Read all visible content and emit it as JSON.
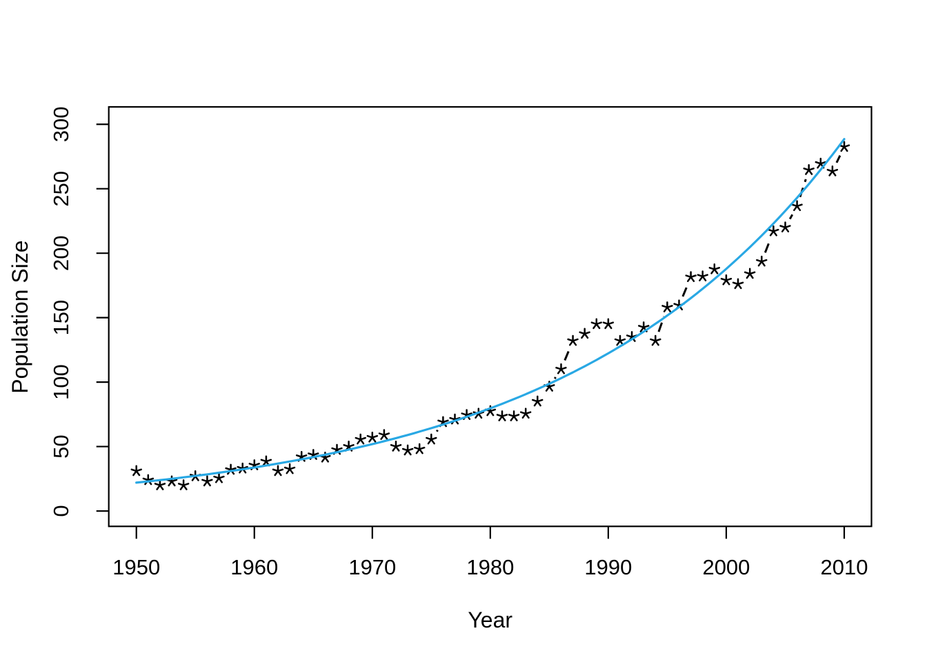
{
  "chart_data": {
    "type": "scatter",
    "title": "",
    "xlabel": "Year",
    "ylabel": "Population Size",
    "x_ticks": [
      1950,
      1960,
      1970,
      1980,
      1990,
      2000,
      2010
    ],
    "y_ticks": [
      0,
      50,
      100,
      150,
      200,
      250,
      300
    ],
    "xlim": [
      1947.66,
      2012.31
    ],
    "ylim": [
      -11.9,
      313.5
    ],
    "grid": "off",
    "legend": "none",
    "marker": "asterisk",
    "point_color": "#000000",
    "connector": {
      "style": "dashed",
      "color": "#000000"
    },
    "curve_color": "#29A8E4",
    "background": "#FFFFFF",
    "years": [
      1950,
      1951,
      1952,
      1953,
      1954,
      1955,
      1956,
      1957,
      1958,
      1959,
      1960,
      1961,
      1962,
      1963,
      1964,
      1965,
      1966,
      1967,
      1968,
      1969,
      1970,
      1971,
      1972,
      1973,
      1974,
      1975,
      1976,
      1977,
      1978,
      1979,
      1980,
      1981,
      1982,
      1983,
      1984,
      1985,
      1986,
      1987,
      1988,
      1989,
      1990,
      1991,
      1992,
      1993,
      1994,
      1995,
      1996,
      1997,
      1998,
      1999,
      2000,
      2001,
      2002,
      2003,
      2004,
      2005,
      2006,
      2007,
      2008,
      2009,
      2010
    ],
    "population": [
      31,
      24,
      20,
      23,
      20,
      27,
      23,
      25.5,
      32,
      33,
      35.5,
      38.5,
      31,
      32.5,
      42,
      43.5,
      41.5,
      47.5,
      50,
      55.5,
      57,
      59,
      50,
      47,
      48,
      55.5,
      69,
      71,
      74.5,
      75.5,
      77.5,
      73.5,
      73.5,
      75.5,
      85,
      96.5,
      110,
      132,
      137.5,
      145,
      145,
      132,
      135,
      142.5,
      132,
      158,
      159.5,
      181.5,
      182,
      187.5,
      179,
      176,
      184,
      193.5,
      217,
      220,
      236.5,
      264.5,
      269.5,
      263.5,
      282.5
    ],
    "fitted_curve": {
      "type": "exponential",
      "start_year": 1950,
      "start_value": 22,
      "end_year": 2010,
      "end_value": 288.5
    }
  }
}
